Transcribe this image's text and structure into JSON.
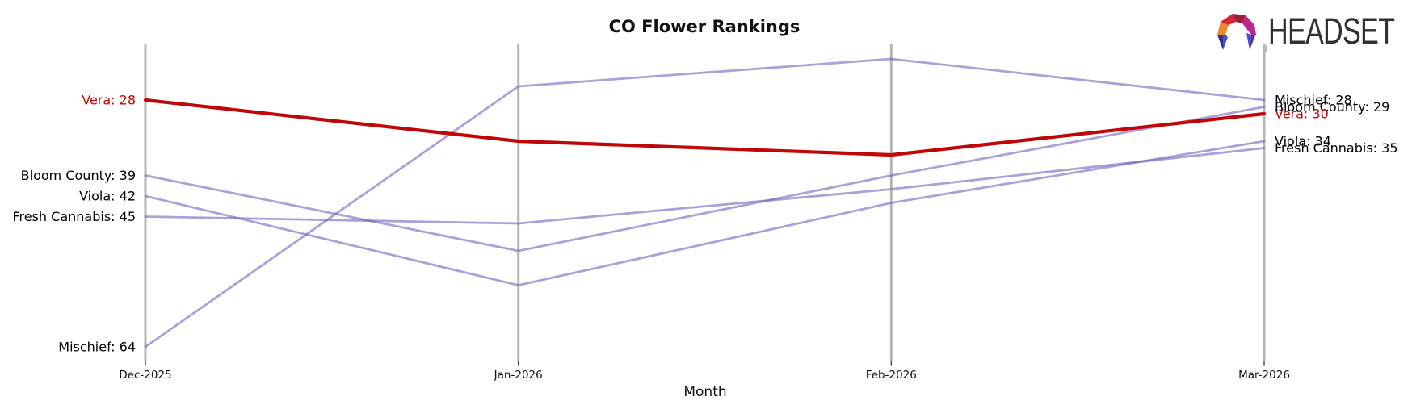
{
  "page": {
    "background": "#ffffff"
  },
  "logo": {
    "text": "HEADSET",
    "text_color": "#313131",
    "icon_colors": {
      "orange": "#F1862C",
      "red": "#D62433",
      "dark_red": "#A01E3C",
      "magenta": "#C12490",
      "blue": "#4053C9",
      "navy": "#2C2F92",
      "indigo": "#5A2EA6"
    }
  },
  "chart_data": {
    "type": "line",
    "title": "CO Flower Rankings",
    "xlabel": "Month",
    "ylabel": "",
    "categories": [
      "Dec-2025",
      "Jan-2026",
      "Feb-2026",
      "Mar-2026"
    ],
    "y_axis": {
      "inverted": true,
      "visible_range": [
        20,
        66
      ],
      "note": "values are ranks; lower rank is plotted higher"
    },
    "grid": "vertical-gridlines-only",
    "gridline_color": "#b5b5b5",
    "legend_position": "labels-at-line-ends",
    "series": [
      {
        "name": "Mischief",
        "values": [
          64,
          26,
          22,
          28
        ],
        "color": "#7461c2",
        "opacity": 0.6,
        "line_width": 2.8,
        "start_label": "Mischief: 64",
        "end_label": "Mischief: 28",
        "label_color": "#000000"
      },
      {
        "name": "Bloom County",
        "values": [
          39,
          50,
          39,
          29
        ],
        "color": "#7461c2",
        "opacity": 0.6,
        "line_width": 2.8,
        "start_label": "Bloom County: 39",
        "end_label": "Bloom County: 29",
        "label_color": "#000000"
      },
      {
        "name": "Viola",
        "values": [
          42,
          55,
          43,
          34
        ],
        "color": "#7461c2",
        "opacity": 0.6,
        "line_width": 2.8,
        "start_label": "Viola: 42",
        "end_label": "Viola: 34",
        "label_color": "#000000"
      },
      {
        "name": "Fresh Cannabis",
        "values": [
          45,
          46,
          41,
          35
        ],
        "color": "#7461c2",
        "opacity": 0.6,
        "line_width": 2.8,
        "start_label": "Fresh Cannabis: 45",
        "end_label": "Fresh Cannabis: 35",
        "label_color": "#000000"
      },
      {
        "name": "Vera",
        "values": [
          28,
          34,
          36,
          30
        ],
        "color": "#c00606",
        "opacity": 1.0,
        "line_width": 4.2,
        "start_label": "Vera: 28",
        "end_label": "Vera: 30",
        "label_color": "#c00606"
      }
    ]
  }
}
